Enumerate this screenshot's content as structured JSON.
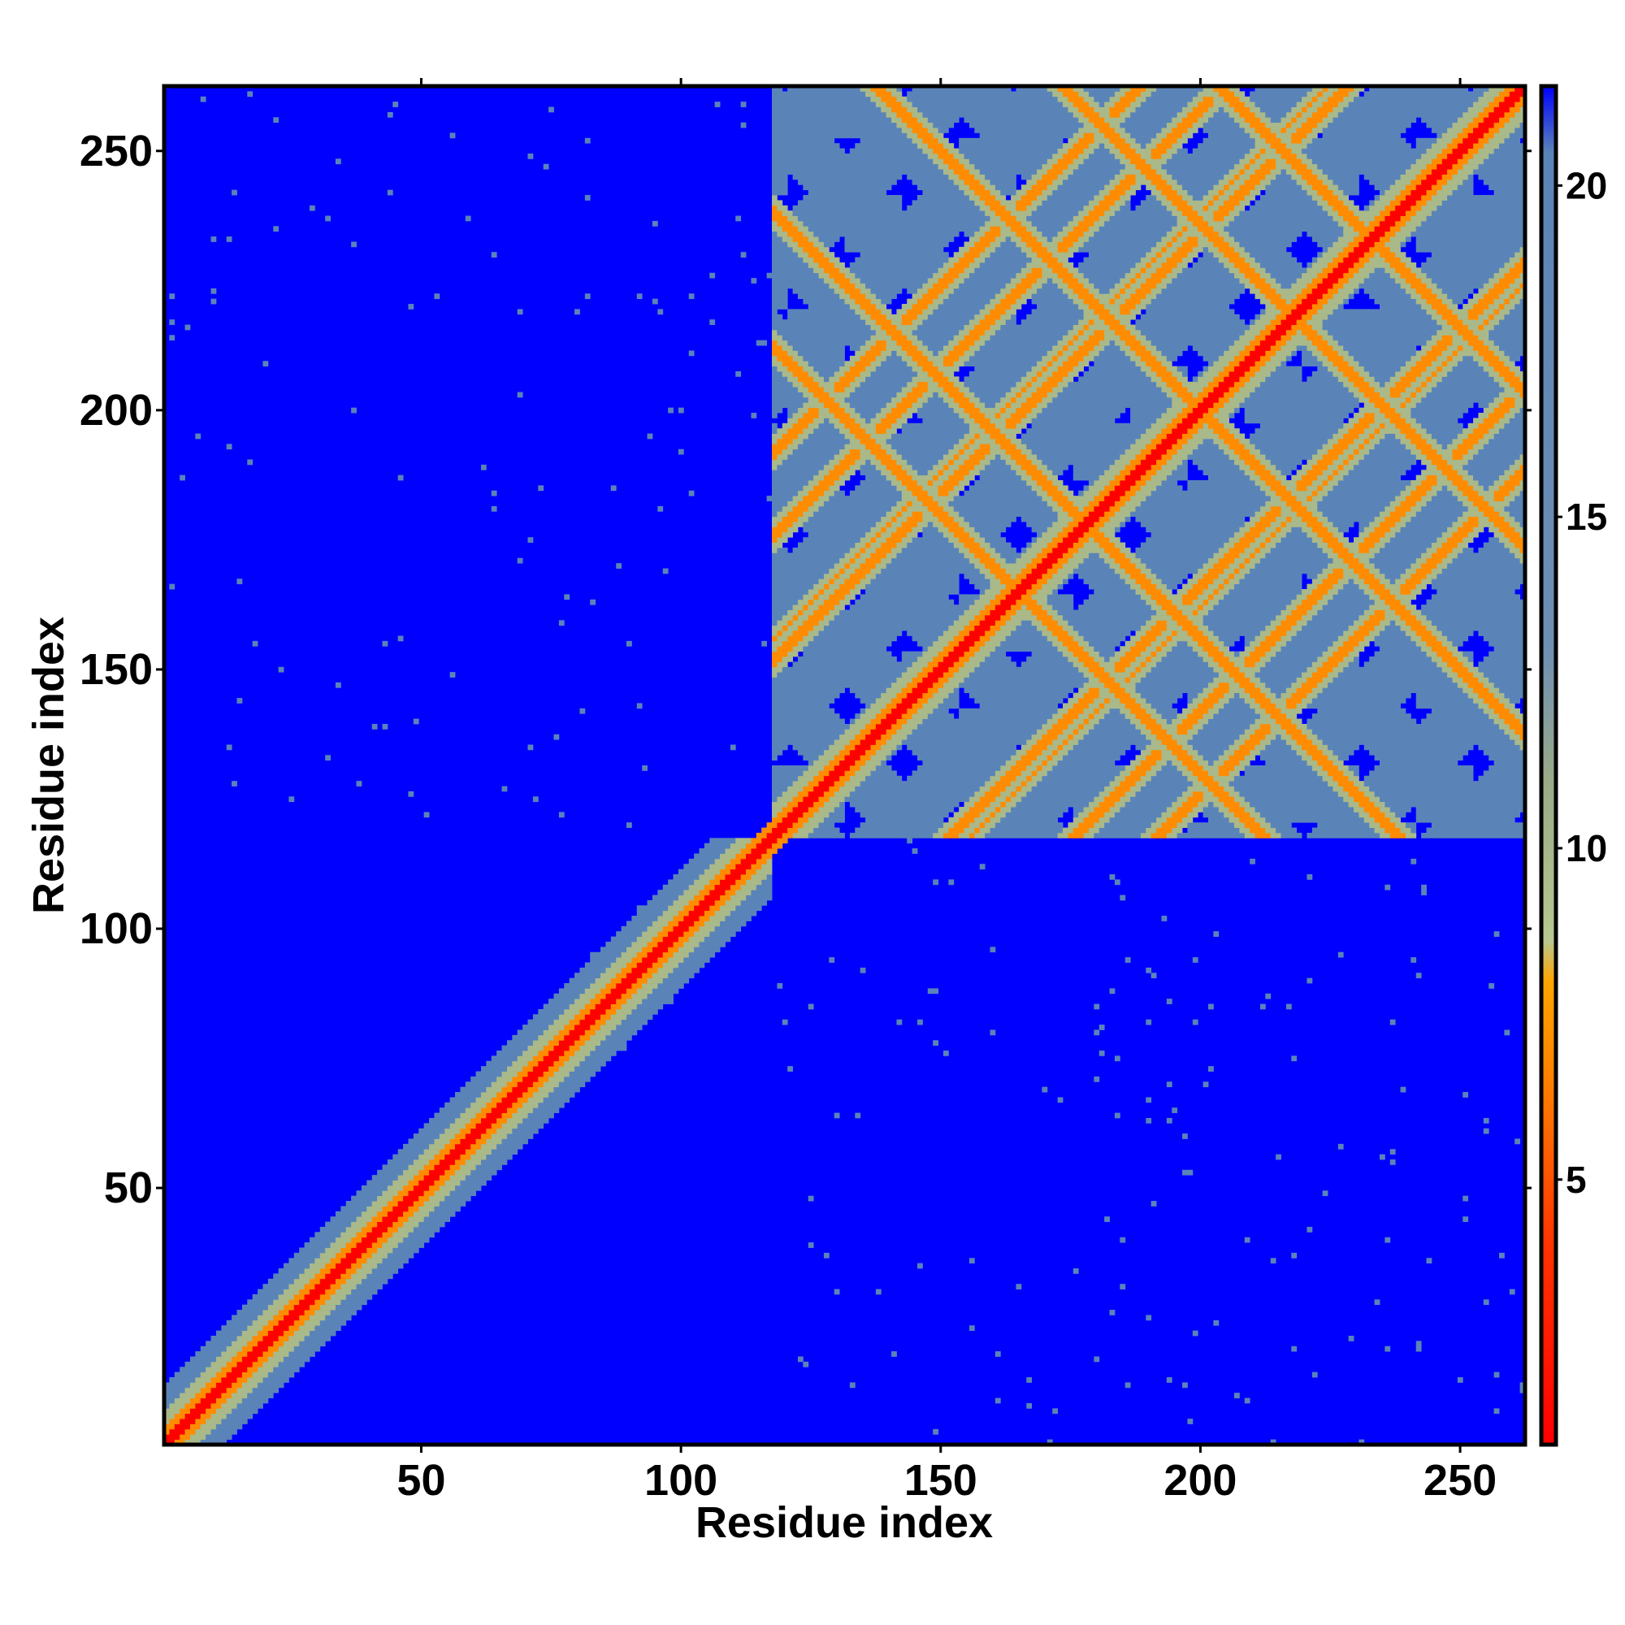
{
  "chart_data": {
    "type": "heatmap",
    "title": "",
    "xlabel": "Residue index",
    "ylabel": "Residue index",
    "xlim": [
      1,
      262
    ],
    "ylim": [
      1,
      262
    ],
    "x_ticks": [
      50,
      100,
      150,
      200,
      250
    ],
    "y_ticks": [
      50,
      100,
      150,
      200,
      250
    ],
    "grid": false,
    "colorbar": {
      "ticks": [
        5,
        10,
        15,
        20
      ],
      "range": [
        1,
        21.5
      ],
      "stops": [
        {
          "value": 1,
          "color": "#ff0000"
        },
        {
          "value": 4,
          "color": "#ff3300"
        },
        {
          "value": 6.5,
          "color": "#ff8000"
        },
        {
          "value": 8,
          "color": "#ffa500"
        },
        {
          "value": 8.6,
          "color": "#b8c890"
        },
        {
          "value": 11,
          "color": "#9aaa88"
        },
        {
          "value": 13,
          "color": "#6f8fb4"
        },
        {
          "value": 20.5,
          "color": "#5a84b8"
        },
        {
          "value": 21.5,
          "color": "#0000ff"
        }
      ],
      "placement": "right"
    },
    "colors": {
      "far": "#0000ff",
      "mid": "#5a84b8",
      "band": "#a9b98a",
      "contact": "#ff8c00",
      "diagonal": "#ff0000"
    },
    "structure": {
      "domain1": [
        1,
        117
      ],
      "domain2": [
        118,
        262
      ],
      "domain1_helix_bands": [
        [
          80,
          2
        ],
        [
          86,
          3
        ],
        [
          95,
          3
        ],
        [
          103,
          2
        ]
      ],
      "domain2_antidiagonals": [
        330,
        356,
        400,
        436,
        466
      ],
      "domain2_parallel_offsets": [
        34,
        37,
        58,
        74
      ]
    }
  }
}
